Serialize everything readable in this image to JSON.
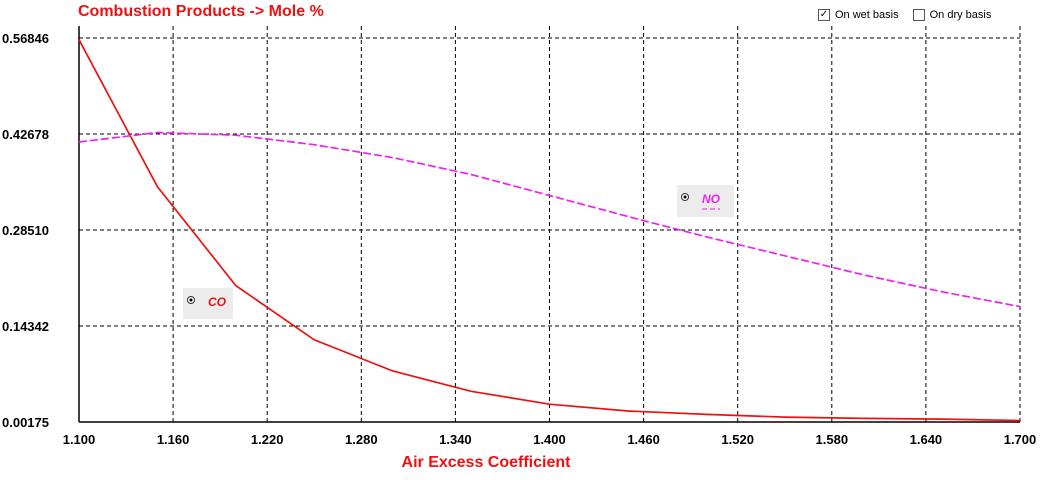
{
  "header": {
    "title": "Combustion Products -> Mole %",
    "options": [
      {
        "label": "On wet basis",
        "checked": true
      },
      {
        "label": "On dry basis",
        "checked": false
      }
    ]
  },
  "chart_data": {
    "type": "line",
    "title": "Combustion Products -> Mole %",
    "xlabel": "Air Excess Coefficient",
    "ylabel": "",
    "xlim": [
      1.1,
      1.7
    ],
    "ylim": [
      0.00175,
      0.56846
    ],
    "xticks": [
      "1.100",
      "1.160",
      "1.220",
      "1.280",
      "1.340",
      "1.400",
      "1.460",
      "1.520",
      "1.580",
      "1.640",
      "1.700"
    ],
    "yticks": [
      "0.56846",
      "0.42678",
      "0.28510",
      "0.14342",
      "0.00175"
    ],
    "grid": true,
    "series": [
      {
        "name": "CO",
        "color": "#ee1111",
        "dash": "solid",
        "x": [
          1.1,
          1.15,
          1.2,
          1.25,
          1.3,
          1.35,
          1.4,
          1.45,
          1.5,
          1.55,
          1.6,
          1.65,
          1.7
        ],
        "y": [
          0.566,
          0.349,
          0.203,
          0.123,
          0.077,
          0.047,
          0.028,
          0.018,
          0.013,
          0.009,
          0.007,
          0.006,
          0.004
        ]
      },
      {
        "name": "NO",
        "color": "#ee22ee",
        "dash": "dashed",
        "x": [
          1.1,
          1.15,
          1.2,
          1.25,
          1.3,
          1.35,
          1.4,
          1.45,
          1.5,
          1.55,
          1.6,
          1.65,
          1.7
        ],
        "y": [
          0.415,
          0.429,
          0.425,
          0.411,
          0.392,
          0.367,
          0.336,
          0.305,
          0.275,
          0.247,
          0.219,
          0.194,
          0.172
        ]
      }
    ]
  }
}
